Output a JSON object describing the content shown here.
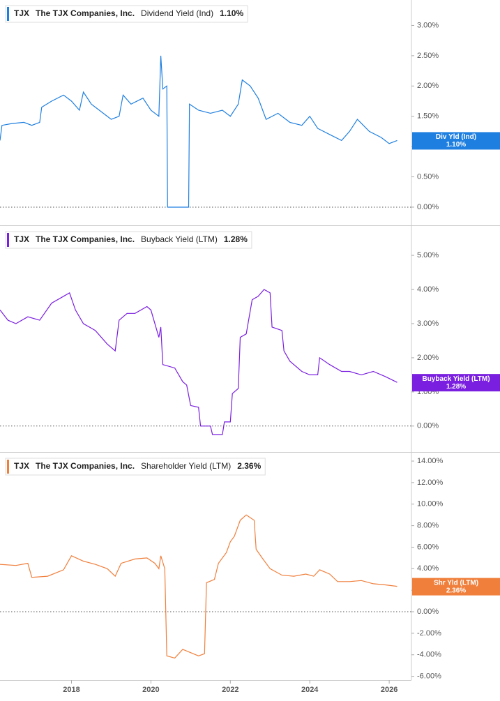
{
  "chart_data": [
    {
      "type": "line",
      "ticker": "TJX",
      "company": "The TJX Companies, Inc.",
      "metric": "Dividend Yield (Ind)",
      "current_value": 1.1,
      "current_label": "1.10%",
      "x": [
        2016.2,
        2016.25,
        2016.5,
        2016.8,
        2017.0,
        2017.2,
        2017.25,
        2017.5,
        2017.8,
        2018.0,
        2018.2,
        2018.3,
        2018.5,
        2018.8,
        2019.0,
        2019.2,
        2019.3,
        2019.5,
        2019.8,
        2020.0,
        2020.2,
        2020.25,
        2020.3,
        2020.4,
        2020.42,
        2020.95,
        2020.97,
        2021.2,
        2021.5,
        2021.8,
        2022.0,
        2022.2,
        2022.3,
        2022.5,
        2022.7,
        2022.9,
        2023.2,
        2023.5,
        2023.8,
        2024.0,
        2024.2,
        2024.5,
        2024.8,
        2025.0,
        2025.2,
        2025.5,
        2025.8,
        2026.0,
        2026.2
      ],
      "series": [
        {
          "name": "Div Yld (Ind)",
          "color": "#1f7fe0",
          "values": [
            1.1,
            1.35,
            1.38,
            1.4,
            1.35,
            1.4,
            1.65,
            1.75,
            1.85,
            1.75,
            1.6,
            1.9,
            1.7,
            1.55,
            1.45,
            1.5,
            1.85,
            1.7,
            1.8,
            1.6,
            1.5,
            2.5,
            1.95,
            2.0,
            0,
            0,
            1.7,
            1.6,
            1.55,
            1.6,
            1.5,
            1.7,
            2.1,
            2.0,
            1.8,
            1.45,
            1.55,
            1.4,
            1.35,
            1.5,
            1.3,
            1.2,
            1.1,
            1.25,
            1.45,
            1.25,
            1.15,
            1.05,
            1.1
          ]
        }
      ],
      "xlim": [
        2016.2,
        2026.56
      ],
      "ylim": [
        -0.3,
        3.42
      ],
      "zero_line": 0,
      "yticks": [
        {
          "value": 0,
          "label": "0.00%"
        },
        {
          "value": 0.5,
          "label": "0.50%"
        },
        {
          "value": 1,
          "label": "1.00%"
        },
        {
          "value": 1.5,
          "label": "1.50%"
        },
        {
          "value": 2,
          "label": "2.00%"
        },
        {
          "value": 2.5,
          "label": "2.50%"
        },
        {
          "value": 3,
          "label": "3.00%"
        }
      ]
    },
    {
      "type": "line",
      "ticker": "TJX",
      "company": "The TJX Companies, Inc.",
      "metric": "Buyback Yield (LTM)",
      "current_value": 1.28,
      "current_label": "1.28%",
      "x": [
        2016.2,
        2016.4,
        2016.6,
        2016.9,
        2017.2,
        2017.5,
        2017.8,
        2017.95,
        2018.1,
        2018.3,
        2018.6,
        2018.9,
        2019.1,
        2019.2,
        2019.4,
        2019.6,
        2019.9,
        2020.0,
        2020.2,
        2020.25,
        2020.3,
        2020.6,
        2020.8,
        2020.9,
        2021.0,
        2021.2,
        2021.25,
        2021.5,
        2021.55,
        2021.8,
        2021.85,
        2022.0,
        2022.05,
        2022.2,
        2022.25,
        2022.4,
        2022.55,
        2022.7,
        2022.85,
        2023.0,
        2023.05,
        2023.3,
        2023.35,
        2023.5,
        2023.8,
        2024.0,
        2024.2,
        2024.25,
        2024.5,
        2024.8,
        2025.0,
        2025.3,
        2025.6,
        2025.9,
        2026.2
      ],
      "series": [
        {
          "name": "Buyback Yield (LTM)",
          "color": "#7a1fe0",
          "values": [
            3.4,
            3.1,
            3.0,
            3.2,
            3.1,
            3.6,
            3.8,
            3.9,
            3.4,
            3.0,
            2.8,
            2.4,
            2.2,
            3.1,
            3.3,
            3.3,
            3.5,
            3.4,
            2.6,
            2.9,
            1.8,
            1.7,
            1.3,
            1.2,
            0.6,
            0.55,
            0,
            0,
            -0.25,
            -0.25,
            0.12,
            0.12,
            0.95,
            1.1,
            2.6,
            2.7,
            3.7,
            3.8,
            4.0,
            3.9,
            2.9,
            2.8,
            2.2,
            1.9,
            1.6,
            1.5,
            1.5,
            2.0,
            1.8,
            1.6,
            1.6,
            1.5,
            1.6,
            1.45,
            1.28
          ]
        }
      ],
      "xlim": [
        2016.2,
        2026.56
      ],
      "ylim": [
        -0.76,
        5.86
      ],
      "zero_line": 0,
      "yticks": [
        {
          "value": 0,
          "label": "0.00%"
        },
        {
          "value": 1,
          "label": "1.00%"
        },
        {
          "value": 2,
          "label": "2.00%"
        },
        {
          "value": 3,
          "label": "3.00%"
        },
        {
          "value": 4,
          "label": "4.00%"
        },
        {
          "value": 5,
          "label": "5.00%"
        }
      ]
    },
    {
      "type": "line",
      "ticker": "TJX",
      "company": "The TJX Companies, Inc.",
      "metric": "Shareholder Yield (LTM)",
      "current_value": 2.36,
      "current_label": "2.36%",
      "x": [
        2016.2,
        2016.6,
        2016.9,
        2017.0,
        2017.4,
        2017.8,
        2018.0,
        2018.3,
        2018.6,
        2018.9,
        2019.1,
        2019.25,
        2019.6,
        2019.9,
        2020.1,
        2020.2,
        2020.25,
        2020.35,
        2020.4,
        2020.6,
        2020.8,
        2021.0,
        2021.2,
        2021.35,
        2021.4,
        2021.6,
        2021.7,
        2021.9,
        2022.0,
        2022.1,
        2022.25,
        2022.4,
        2022.6,
        2022.65,
        2022.8,
        2023.0,
        2023.3,
        2023.6,
        2023.9,
        2024.1,
        2024.25,
        2024.5,
        2024.7,
        2025.0,
        2025.3,
        2025.6,
        2025.9,
        2026.2
      ],
      "series": [
        {
          "name": "Shr Yld (LTM)",
          "color": "#f07f3c",
          "values": [
            4.4,
            4.3,
            4.5,
            3.2,
            3.3,
            3.9,
            5.2,
            4.7,
            4.4,
            4.0,
            3.3,
            4.5,
            4.9,
            5.0,
            4.5,
            4.0,
            5.2,
            4.0,
            -4.1,
            -4.3,
            -3.5,
            -3.8,
            -4.1,
            -3.9,
            2.7,
            3.0,
            4.5,
            5.5,
            6.5,
            7.0,
            8.5,
            9.0,
            8.5,
            5.8,
            5.0,
            4.0,
            3.4,
            3.3,
            3.5,
            3.3,
            3.9,
            3.5,
            2.8,
            2.8,
            2.9,
            2.6,
            2.5,
            2.36
          ]
        }
      ],
      "xlim": [
        2016.2,
        2026.56
      ],
      "ylim": [
        -6.35,
        14.78
      ],
      "zero_line": 0,
      "yticks": [
        {
          "value": -6,
          "label": "-6.00%"
        },
        {
          "value": -4,
          "label": "-4.00%"
        },
        {
          "value": -2,
          "label": "-2.00%"
        },
        {
          "value": 0,
          "label": "0.00%"
        },
        {
          "value": 2,
          "label": "2.00%"
        },
        {
          "value": 4,
          "label": "4.00%"
        },
        {
          "value": 6,
          "label": "6.00%"
        },
        {
          "value": 8,
          "label": "8.00%"
        },
        {
          "value": 10,
          "label": "10.00%"
        },
        {
          "value": 12,
          "label": "12.00%"
        },
        {
          "value": 14,
          "label": "14.00%"
        }
      ],
      "xticks": [
        2018,
        2020,
        2022,
        2024,
        2026
      ]
    }
  ]
}
